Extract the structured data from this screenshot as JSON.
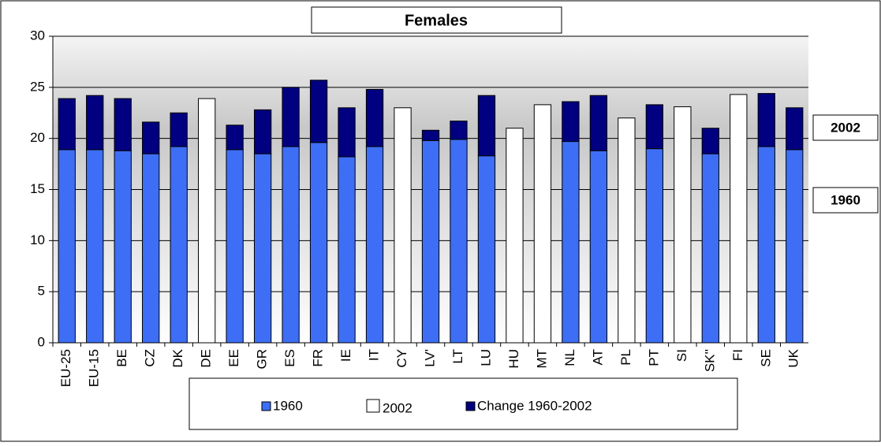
{
  "chart_data": {
    "type": "stacked_bar",
    "title": "Females",
    "categories": [
      "EU-25",
      "EU-15",
      "BE",
      "CZ",
      "DK",
      "DE",
      "EE",
      "GR",
      "ES",
      "FR",
      "IE",
      "IT",
      "CY",
      "LV'",
      "LT",
      "LU",
      "HU",
      "MT",
      "NL",
      "AT",
      "PL",
      "PT",
      "SI",
      "SK''",
      "FI",
      "SE",
      "UK"
    ],
    "series": [
      {
        "name": "1960",
        "color": "#3d6ef5",
        "values": [
          18.9,
          18.9,
          18.8,
          18.5,
          19.2,
          null,
          18.9,
          18.5,
          19.2,
          19.6,
          18.2,
          19.2,
          null,
          19.8,
          19.9,
          18.3,
          null,
          null,
          19.7,
          18.8,
          null,
          19.0,
          null,
          18.5,
          null,
          19.2,
          18.9
        ]
      },
      {
        "name": "2002",
        "color": "#ffffff",
        "values": [
          null,
          null,
          null,
          null,
          null,
          23.9,
          null,
          null,
          null,
          null,
          null,
          null,
          23.0,
          null,
          null,
          null,
          21.0,
          23.3,
          null,
          null,
          22.0,
          null,
          23.1,
          null,
          24.3,
          null,
          null
        ]
      },
      {
        "name": "Change 1960-2002",
        "color": "#000080",
        "values": [
          5.0,
          5.3,
          5.1,
          3.1,
          3.3,
          null,
          2.4,
          4.3,
          5.8,
          6.1,
          4.8,
          5.6,
          null,
          1.0,
          1.8,
          5.9,
          null,
          null,
          3.9,
          5.4,
          null,
          4.3,
          null,
          2.5,
          null,
          5.2,
          4.1
        ]
      }
    ],
    "ylim": [
      0,
      30
    ],
    "yticks": [
      0,
      5,
      10,
      15,
      20,
      25,
      30
    ],
    "grid": true,
    "side_labels": [
      "2002",
      "1960"
    ]
  }
}
